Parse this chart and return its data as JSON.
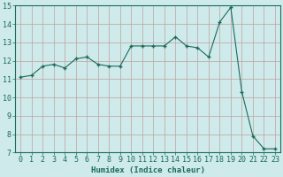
{
  "x": [
    0,
    1,
    2,
    3,
    4,
    5,
    6,
    7,
    8,
    9,
    10,
    11,
    12,
    13,
    14,
    15,
    16,
    17,
    18,
    19,
    20,
    21,
    22,
    23
  ],
  "y": [
    11.1,
    11.2,
    11.7,
    11.8,
    11.6,
    12.1,
    12.2,
    11.8,
    11.7,
    11.7,
    12.8,
    12.8,
    12.8,
    12.8,
    13.3,
    12.8,
    12.7,
    12.2,
    14.1,
    14.9,
    10.3,
    7.9,
    7.2,
    7.2
  ],
  "line_color": "#1a6b5a",
  "marker": "+",
  "marker_size": 3,
  "marker_linewidth": 1.0,
  "line_width": 0.8,
  "background_color": "#ceeaea",
  "grid_color": "#c0a0a0",
  "xlabel": "Humidex (Indice chaleur)",
  "xlim": [
    -0.5,
    23.5
  ],
  "ylim": [
    7,
    15
  ],
  "yticks": [
    7,
    8,
    9,
    10,
    11,
    12,
    13,
    14,
    15
  ],
  "xticks": [
    0,
    1,
    2,
    3,
    4,
    5,
    6,
    7,
    8,
    9,
    10,
    11,
    12,
    13,
    14,
    15,
    16,
    17,
    18,
    19,
    20,
    21,
    22,
    23
  ],
  "label_fontsize": 6.5,
  "tick_fontsize": 6
}
